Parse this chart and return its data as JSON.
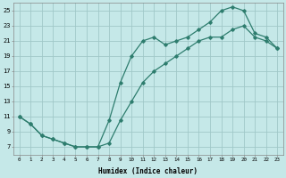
{
  "xlabel": "Humidex (Indice chaleur)",
  "background_color": "#c5e8e8",
  "grid_color": "#a0c8c8",
  "line_color": "#2e7d6e",
  "xlim": [
    -0.5,
    23.5
  ],
  "ylim": [
    6,
    26
  ],
  "xticks": [
    0,
    1,
    2,
    3,
    4,
    5,
    6,
    7,
    8,
    9,
    10,
    11,
    12,
    13,
    14,
    15,
    16,
    17,
    18,
    19,
    20,
    21,
    22,
    23
  ],
  "yticks": [
    7,
    9,
    11,
    13,
    15,
    17,
    19,
    21,
    23,
    25
  ],
  "line1_x": [
    0,
    1,
    2,
    3,
    4,
    5,
    6,
    7,
    8,
    9,
    10,
    11,
    12,
    13,
    14,
    15,
    16,
    17,
    18,
    19,
    20,
    21,
    22,
    23
  ],
  "line1_y": [
    11,
    10,
    8.5,
    8,
    7.5,
    7,
    7,
    7,
    10.5,
    15.5,
    19,
    21,
    21.5,
    20.5,
    21,
    21.5,
    22.5,
    23.5,
    25,
    25.5,
    25,
    22,
    21.5,
    20
  ],
  "line2_x": [
    0,
    1,
    2,
    3,
    4,
    5,
    6,
    7,
    8,
    9,
    10,
    11,
    12,
    13,
    14,
    15,
    16,
    17,
    18,
    19,
    20,
    21,
    22,
    23
  ],
  "line2_y": [
    11,
    10,
    8.5,
    8,
    7.5,
    7,
    7,
    7,
    7.5,
    10.5,
    13,
    15.5,
    17,
    18,
    19,
    20,
    21,
    21.5,
    21.5,
    22.5,
    23,
    21.5,
    21,
    20
  ]
}
